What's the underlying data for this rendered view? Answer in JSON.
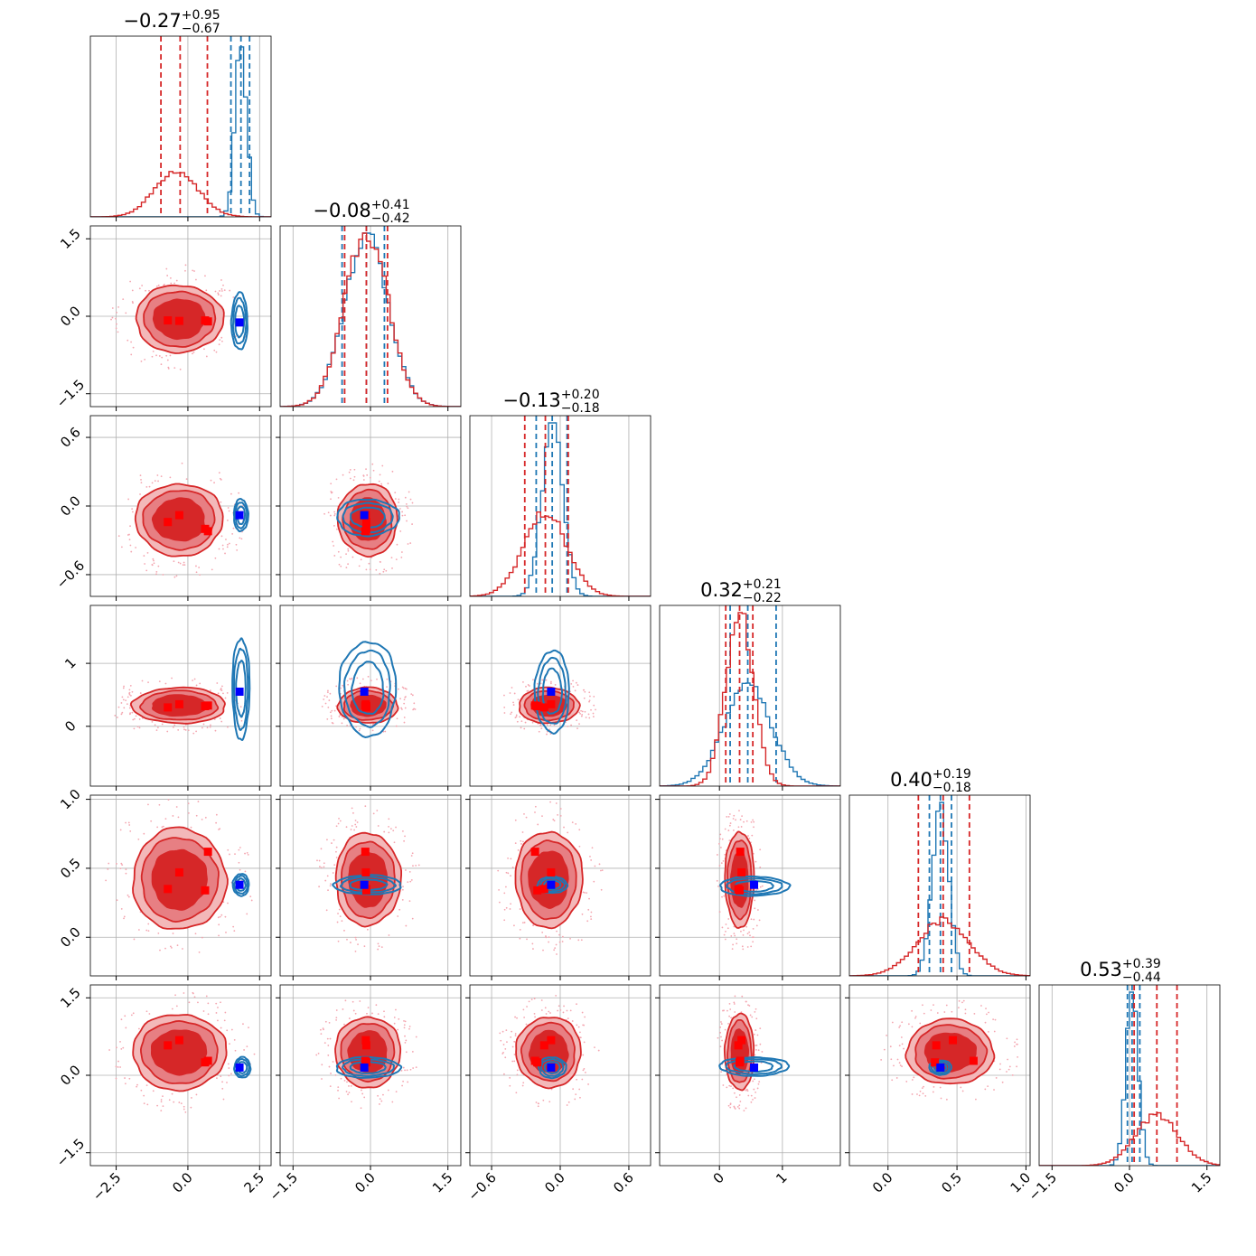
{
  "figure": {
    "type": "corner-plot"
  },
  "colors": {
    "red_series": "#d62728",
    "blue_series": "#1f77b4",
    "red_marker": "#ff0000",
    "blue_marker": "#0000ff",
    "grid": "#b0b0b0"
  },
  "chart_data": {
    "type": "corner",
    "n_params": 6,
    "series": [
      {
        "color": "#d62728",
        "style": "filled-contours"
      },
      {
        "color": "#1f77b4",
        "style": "line-contours"
      }
    ],
    "titles": [
      {
        "central": "−0.27",
        "plus": "+0.95",
        "minus": "−0.67"
      },
      {
        "central": "−0.08",
        "plus": "+0.41",
        "minus": "−0.42"
      },
      {
        "central": "−0.13",
        "plus": "+0.20",
        "minus": "−0.18"
      },
      {
        "central": "0.32",
        "plus": "+0.21",
        "minus": "−0.22"
      },
      {
        "central": "0.40",
        "plus": "+0.19",
        "minus": "−0.18"
      },
      {
        "central": "0.53",
        "plus": "+0.39",
        "minus": "−0.44"
      }
    ],
    "axes": [
      {
        "range": [
          -3.4,
          2.9
        ],
        "ticks": [
          -2.5,
          0.0,
          2.5
        ],
        "tick_labels": [
          "−2.5",
          "0.0",
          "2.5"
        ]
      },
      {
        "range": [
          -1.75,
          1.75
        ],
        "ticks": [
          -1.5,
          0.0,
          1.5
        ],
        "tick_labels": [
          "−1.5",
          "0.0",
          "1.5"
        ]
      },
      {
        "range": [
          -0.79,
          0.79
        ],
        "ticks": [
          -0.6,
          0.0,
          0.6
        ],
        "tick_labels": [
          "−0.6",
          "0.0",
          "0.6"
        ]
      },
      {
        "range": [
          -0.95,
          1.92
        ],
        "ticks": [
          0,
          1
        ],
        "tick_labels": [
          "0",
          "1"
        ]
      },
      {
        "range": [
          -0.28,
          1.03
        ],
        "ticks": [
          0.0,
          0.5,
          1.0
        ],
        "tick_labels": [
          "0.0",
          "0.5",
          "1.0"
        ]
      },
      {
        "range": [
          -1.75,
          1.75
        ],
        "ticks": [
          -1.5,
          0.0,
          1.5
        ],
        "tick_labels": [
          "−1.5",
          "0.0",
          "1.5"
        ]
      }
    ],
    "marginals": [
      {
        "red": {
          "mean": -0.4,
          "sd": 0.75,
          "q": [
            -0.94,
            -0.27,
            0.68
          ]
        },
        "blue": {
          "mean": 1.85,
          "sd": 0.2,
          "q": [
            1.5,
            1.85,
            2.15
          ]
        }
      },
      {
        "red": {
          "mean": -0.08,
          "sd": 0.42,
          "q": [
            -0.5,
            -0.08,
            0.33
          ]
        },
        "blue": {
          "mean": -0.08,
          "sd": 0.42,
          "q": [
            -0.55,
            -0.08,
            0.27
          ]
        }
      },
      {
        "red": {
          "mean": -0.13,
          "sd": 0.19,
          "q": [
            -0.31,
            -0.13,
            0.07
          ]
        },
        "blue": {
          "mean": -0.07,
          "sd": 0.09,
          "q": [
            -0.21,
            -0.07,
            0.06
          ]
        }
      },
      {
        "red": {
          "mean": 0.32,
          "sd": 0.22,
          "q": [
            0.1,
            0.32,
            0.53
          ]
        },
        "blue": {
          "mean": 0.45,
          "sd": 0.38,
          "q": [
            0.17,
            0.45,
            0.9
          ]
        }
      },
      {
        "red": {
          "mean": 0.4,
          "sd": 0.19,
          "q": [
            0.22,
            0.4,
            0.59
          ]
        },
        "blue": {
          "mean": 0.38,
          "sd": 0.06,
          "q": [
            0.3,
            0.38,
            0.46
          ]
        }
      },
      {
        "red": {
          "mean": 0.53,
          "sd": 0.42,
          "q": [
            0.09,
            0.53,
            0.92
          ]
        },
        "blue": {
          "mean": 0.05,
          "sd": 0.12,
          "q": [
            -0.04,
            0.05,
            0.2
          ]
        }
      }
    ],
    "contours": [
      {
        "row": 1,
        "col": 0,
        "red": {
          "cx": -0.3,
          "cy": -0.05,
          "sx": 1.45,
          "sy": 0.62
        },
        "blue": {
          "cx": 1.8,
          "cy": -0.1,
          "sx": 0.28,
          "sy": 0.55
        }
      },
      {
        "row": 2,
        "col": 0,
        "red": {
          "cx": -0.3,
          "cy": -0.12,
          "sx": 1.45,
          "sy": 0.3
        },
        "blue": {
          "cx": 1.85,
          "cy": -0.08,
          "sx": 0.25,
          "sy": 0.14
        }
      },
      {
        "row": 2,
        "col": 1,
        "red": {
          "cx": -0.05,
          "cy": -0.12,
          "sx": 0.55,
          "sy": 0.3
        },
        "blue": {
          "cx": -0.05,
          "cy": -0.1,
          "sx": 0.6,
          "sy": 0.16
        }
      },
      {
        "row": 3,
        "col": 0,
        "red": {
          "cx": -0.3,
          "cy": 0.33,
          "sx": 1.55,
          "sy": 0.27
        },
        "blue": {
          "cx": 1.85,
          "cy": 0.6,
          "sx": 0.3,
          "sy": 0.8
        }
      },
      {
        "row": 3,
        "col": 1,
        "red": {
          "cx": -0.05,
          "cy": 0.33,
          "sx": 0.55,
          "sy": 0.27
        },
        "blue": {
          "cx": -0.05,
          "cy": 0.6,
          "sx": 0.55,
          "sy": 0.75
        }
      },
      {
        "row": 3,
        "col": 2,
        "red": {
          "cx": -0.1,
          "cy": 0.33,
          "sx": 0.25,
          "sy": 0.27
        },
        "blue": {
          "cx": -0.07,
          "cy": 0.55,
          "sx": 0.15,
          "sy": 0.65
        }
      },
      {
        "row": 4,
        "col": 0,
        "red": {
          "cx": -0.3,
          "cy": 0.42,
          "sx": 1.55,
          "sy": 0.35
        },
        "blue": {
          "cx": 1.85,
          "cy": 0.38,
          "sx": 0.28,
          "sy": 0.08
        }
      },
      {
        "row": 4,
        "col": 1,
        "red": {
          "cx": -0.05,
          "cy": 0.42,
          "sx": 0.6,
          "sy": 0.32
        },
        "blue": {
          "cx": -0.05,
          "cy": 0.38,
          "sx": 0.65,
          "sy": 0.07
        }
      },
      {
        "row": 4,
        "col": 2,
        "red": {
          "cx": -0.1,
          "cy": 0.42,
          "sx": 0.28,
          "sy": 0.33
        },
        "blue": {
          "cx": -0.07,
          "cy": 0.38,
          "sx": 0.13,
          "sy": 0.06
        }
      },
      {
        "row": 4,
        "col": 3,
        "red": {
          "cx": 0.32,
          "cy": 0.42,
          "sx": 0.22,
          "sy": 0.33
        },
        "blue": {
          "cx": 0.55,
          "cy": 0.37,
          "sx": 0.55,
          "sy": 0.07
        }
      },
      {
        "row": 5,
        "col": 0,
        "red": {
          "cx": -0.3,
          "cy": 0.45,
          "sx": 1.55,
          "sy": 0.7
        },
        "blue": {
          "cx": 1.9,
          "cy": 0.15,
          "sx": 0.28,
          "sy": 0.2
        }
      },
      {
        "row": 5,
        "col": 1,
        "red": {
          "cx": -0.05,
          "cy": 0.45,
          "sx": 0.6,
          "sy": 0.65
        },
        "blue": {
          "cx": -0.05,
          "cy": 0.15,
          "sx": 0.62,
          "sy": 0.2
        }
      },
      {
        "row": 5,
        "col": 2,
        "red": {
          "cx": -0.1,
          "cy": 0.45,
          "sx": 0.27,
          "sy": 0.65
        },
        "blue": {
          "cx": -0.07,
          "cy": 0.15,
          "sx": 0.12,
          "sy": 0.2
        }
      },
      {
        "row": 5,
        "col": 3,
        "red": {
          "cx": 0.32,
          "cy": 0.45,
          "sx": 0.22,
          "sy": 0.7
        },
        "blue": {
          "cx": 0.55,
          "cy": 0.17,
          "sx": 0.55,
          "sy": 0.18
        }
      },
      {
        "row": 5,
        "col": 4,
        "red": {
          "cx": 0.45,
          "cy": 0.45,
          "sx": 0.3,
          "sy": 0.6
        },
        "blue": {
          "cx": 0.38,
          "cy": 0.15,
          "sx": 0.08,
          "sy": 0.14
        }
      }
    ],
    "truth_blue": [
      1.8,
      -0.12,
      -0.08,
      0.55,
      0.38,
      0.15
    ],
    "truth_red": [
      [
        -0.7,
        -0.08,
        -0.14,
        0.3,
        0.35,
        0.58
      ],
      [
        -0.3,
        -0.09,
        -0.08,
        0.35,
        0.47,
        0.68
      ],
      [
        0.7,
        -0.1,
        -0.22,
        0.33,
        0.62,
        0.28
      ],
      [
        0.6,
        -0.08,
        -0.2,
        0.32,
        0.34,
        0.25
      ]
    ]
  }
}
